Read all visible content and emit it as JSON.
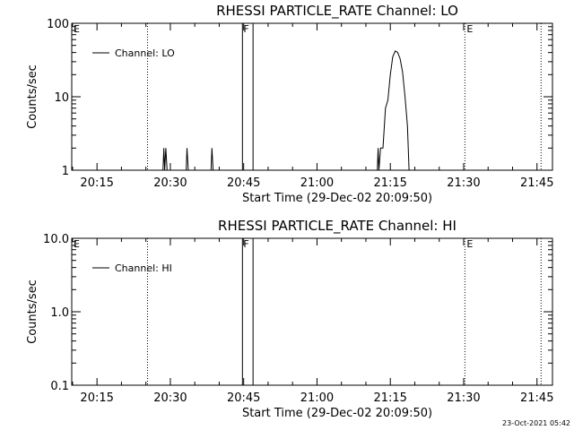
{
  "chart_data": [
    {
      "type": "line",
      "title": "RHESSI PARTICLE_RATE Channel: LO",
      "xlabel": "Start Time (29-Dec-02 20:09:50)",
      "ylabel": "Counts/sec",
      "xlim": [
        "20:09:50",
        "21:48:10"
      ],
      "ylim": [
        1,
        100
      ],
      "yscale": "log",
      "x_ticks": [
        "20:15",
        "20:30",
        "20:45",
        "21:00",
        "21:15",
        "21:30",
        "21:45"
      ],
      "y_ticks": [
        "1",
        "10",
        "100"
      ],
      "legend": {
        "position": "top-left",
        "entries": [
          "Channel: LO"
        ]
      },
      "markers": [
        {
          "label": "E",
          "time": "20:09:50",
          "style": "dotted"
        },
        {
          "label": "",
          "time": "20:25:20",
          "style": "dotted"
        },
        {
          "label": "F",
          "time": "20:44:45",
          "style": "band",
          "end": "20:46:55"
        },
        {
          "label": "E",
          "time": "21:30:15",
          "style": "dotted"
        },
        {
          "label": "",
          "time": "21:45:50",
          "style": "dotted"
        }
      ],
      "series": [
        {
          "values": [
            [
              "20:28:30",
              1
            ],
            [
              "20:28:40",
              2
            ],
            [
              "20:28:50",
              1
            ],
            [
              "20:29:05",
              2
            ],
            [
              "20:29:20",
              1
            ],
            [
              "20:33:15",
              1
            ],
            [
              "20:33:25",
              2
            ],
            [
              "20:33:40",
              1
            ],
            [
              "20:38:20",
              1
            ],
            [
              "20:38:30",
              2
            ],
            [
              "20:38:45",
              1
            ],
            [
              "21:12:20",
              1
            ],
            [
              "21:12:30",
              2
            ],
            [
              "21:12:40",
              1
            ],
            [
              "21:13:00",
              2
            ],
            [
              "21:13:30",
              2
            ],
            [
              "21:14:00",
              7
            ],
            [
              "21:14:30",
              9
            ],
            [
              "21:15:00",
              20
            ],
            [
              "21:15:30",
              35
            ],
            [
              "21:16:00",
              42
            ],
            [
              "21:16:30",
              40
            ],
            [
              "21:17:00",
              33
            ],
            [
              "21:17:30",
              22
            ],
            [
              "21:18:00",
              10
            ],
            [
              "21:18:30",
              4
            ],
            [
              "21:18:50",
              1
            ]
          ]
        }
      ]
    },
    {
      "type": "line",
      "title": "RHESSI PARTICLE_RATE Channel: HI",
      "xlabel": "Start Time (29-Dec-02 20:09:50)",
      "ylabel": "Counts/sec",
      "xlim": [
        "20:09:50",
        "21:48:10"
      ],
      "ylim": [
        0.1,
        10
      ],
      "yscale": "log",
      "x_ticks": [
        "20:15",
        "20:30",
        "20:45",
        "21:00",
        "21:15",
        "21:30",
        "21:45"
      ],
      "y_ticks": [
        "0.1",
        "1.0",
        "10.0"
      ],
      "legend": {
        "position": "top-left",
        "entries": [
          "Channel: HI"
        ]
      },
      "markers": [
        {
          "label": "E",
          "time": "20:09:50",
          "style": "dotted"
        },
        {
          "label": "",
          "time": "20:25:20",
          "style": "dotted"
        },
        {
          "label": "F",
          "time": "20:44:45",
          "style": "band",
          "end": "20:46:55"
        },
        {
          "label": "E",
          "time": "21:30:15",
          "style": "dotted"
        },
        {
          "label": "",
          "time": "21:45:50",
          "style": "dotted"
        }
      ],
      "series": [
        {
          "values": []
        }
      ]
    }
  ],
  "footer": {
    "timestamp": "23-Oct-2021 05:42"
  }
}
